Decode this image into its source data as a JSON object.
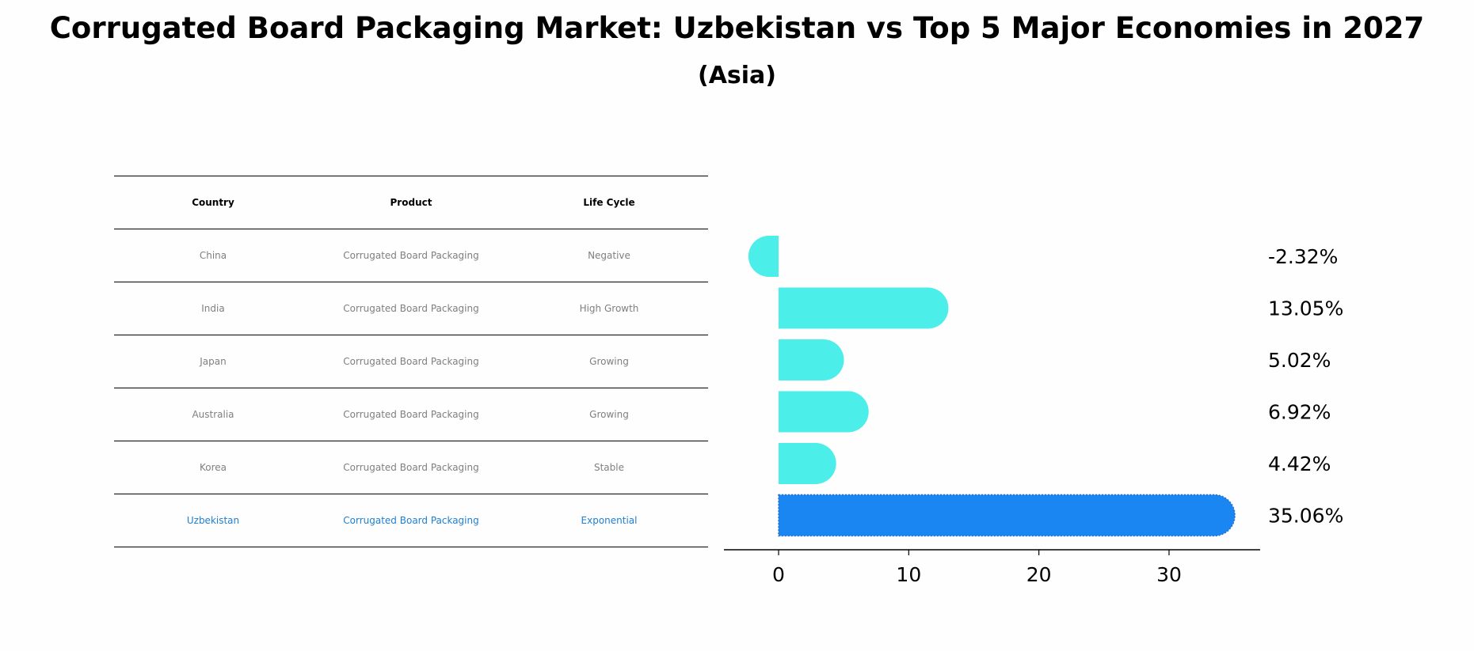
{
  "title": "Corrugated Board Packaging Market: Uzbekistan vs Top 5 Major Economies in 2027",
  "subtitle": "(Asia)",
  "table": {
    "headers": [
      "Country",
      "Product",
      "Life Cycle"
    ],
    "rows": [
      {
        "country": "China",
        "product": "Corrugated Board Packaging",
        "life_cycle": "Negative"
      },
      {
        "country": "India",
        "product": "Corrugated Board Packaging",
        "life_cycle": "High Growth"
      },
      {
        "country": "Japan",
        "product": "Corrugated Board Packaging",
        "life_cycle": "Growing"
      },
      {
        "country": "Australia",
        "product": "Corrugated Board Packaging",
        "life_cycle": "Growing"
      },
      {
        "country": "Korea",
        "product": "Corrugated Board Packaging",
        "life_cycle": "Stable"
      },
      {
        "country": "Uzbekistan",
        "product": "Corrugated Board Packaging",
        "life_cycle": "Exponential"
      }
    ]
  },
  "colors": {
    "bar": "#4ceeea",
    "highlight_bar": "#1a86f2",
    "highlight_text": "#1f7fd0",
    "muted_text": "#7f7f7f"
  },
  "chart_data": {
    "type": "bar",
    "orientation": "horizontal",
    "categories": [
      "China",
      "India",
      "Japan",
      "Australia",
      "Korea",
      "Uzbekistan"
    ],
    "values": [
      -2.32,
      13.05,
      5.02,
      6.92,
      4.42,
      35.06
    ],
    "value_labels": [
      "-2.32%",
      "13.05%",
      "5.02%",
      "6.92%",
      "4.42%",
      "35.06%"
    ],
    "highlight_index": 5,
    "xlim": [
      -4.2,
      37
    ],
    "xticks": [
      0,
      10,
      20,
      30
    ],
    "xtick_labels": [
      "0",
      "10",
      "20",
      "30"
    ],
    "grid": false
  }
}
